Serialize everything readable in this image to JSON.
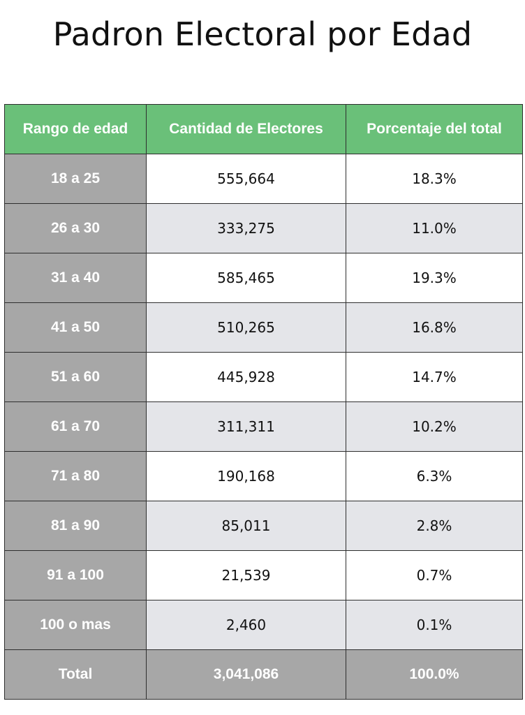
{
  "chart_data": {
    "type": "table",
    "title": "Padron Electoral por Edad",
    "columns": [
      "Rango de edad",
      "Cantidad de Electores",
      "Porcentaje del total"
    ],
    "rows": [
      {
        "range": "18 a 25",
        "count": "555,664",
        "percent": "18.3%"
      },
      {
        "range": "26 a 30",
        "count": "333,275",
        "percent": "11.0%"
      },
      {
        "range": "31 a 40",
        "count": "585,465",
        "percent": "19.3%"
      },
      {
        "range": "41 a 50",
        "count": "510,265",
        "percent": "16.8%"
      },
      {
        "range": "51 a 60",
        "count": "445,928",
        "percent": "14.7%"
      },
      {
        "range": "61 a 70",
        "count": "311,311",
        "percent": "10.2%"
      },
      {
        "range": "71 a 80",
        "count": "190,168",
        "percent": "6.3%"
      },
      {
        "range": "81 a 90",
        "count": "85,011",
        "percent": "2.8%"
      },
      {
        "range": "91 a 100",
        "count": "21,539",
        "percent": "0.7%"
      },
      {
        "range": "100 o mas",
        "count": "2,460",
        "percent": "0.1%"
      }
    ],
    "total": {
      "label": "Total",
      "count": "3,041,086",
      "percent": "100.0%"
    },
    "colors": {
      "header": "#6ac079",
      "label_column": "#a7a7a7",
      "row_alt": "#e4e5e9",
      "row": "#ffffff"
    }
  }
}
